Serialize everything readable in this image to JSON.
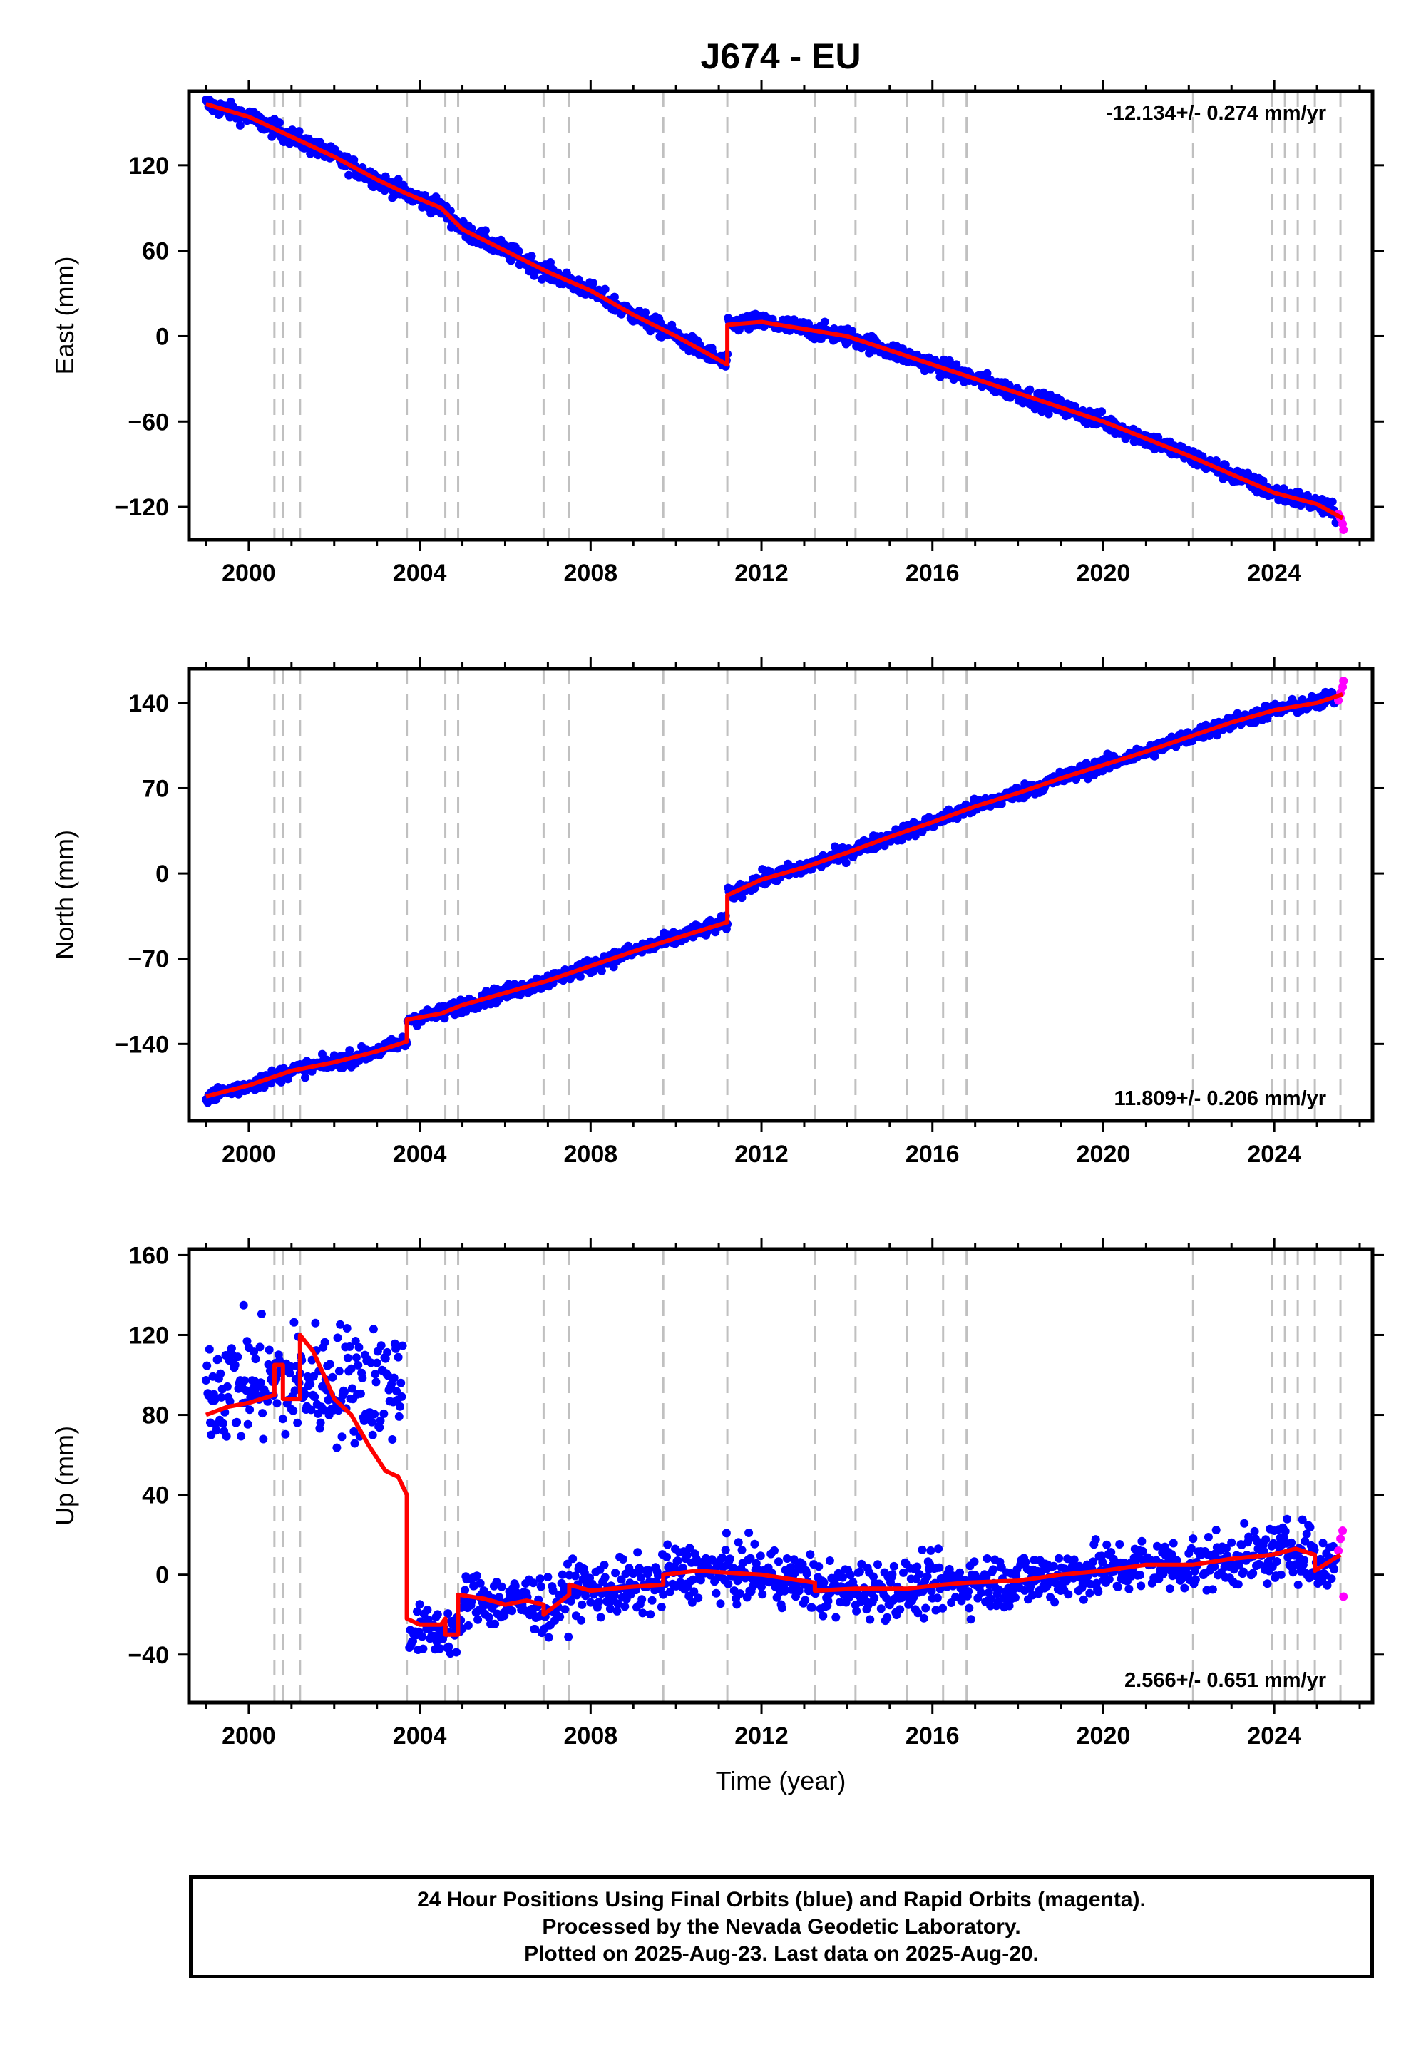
{
  "title": "J674 - EU",
  "footer": {
    "line1": "24 Hour Positions Using Final Orbits (blue) and Rapid Orbits (magenta).",
    "line2": "Processed by the Nevada Geodetic Laboratory.",
    "line3": "Plotted on 2025-Aug-23. Last data on 2025-Aug-20."
  },
  "colors": {
    "final_orbits": "#0000ff",
    "rapid_orbits": "#ff00ff",
    "model": "#ff0000",
    "event_lines": "#c0c0c0"
  },
  "chart_data": [
    {
      "type": "scatter",
      "component": "East",
      "ylabel": "East (mm)",
      "xlabel": "",
      "xlim": [
        1998.6,
        2026.3
      ],
      "ylim": [
        -143,
        172
      ],
      "xticks": [
        2000,
        2004,
        2008,
        2012,
        2016,
        2020,
        2024
      ],
      "yticks": [
        -120,
        -60,
        0,
        60,
        120
      ],
      "rate_label": "-12.134+/- 0.274 mm/yr",
      "rate_position": "top-right",
      "event_lines": [
        2000.6,
        2000.8,
        2001.2,
        2003.7,
        2004.6,
        2004.9,
        2006.9,
        2007.5,
        2009.7,
        2011.2,
        2013.25,
        2014.2,
        2015.4,
        2016.25,
        2016.8,
        2022.1,
        2023.95,
        2024.25,
        2024.55,
        2024.95,
        2025.55
      ],
      "model": [
        [
          1999.0,
          163
        ],
        [
          2000.0,
          154
        ],
        [
          2001.0,
          140
        ],
        [
          2002.0,
          126
        ],
        [
          2003.0,
          110
        ],
        [
          2003.7,
          100
        ],
        [
          2004.5,
          90
        ],
        [
          2005.0,
          75
        ],
        [
          2006.0,
          60
        ],
        [
          2007.0,
          45
        ],
        [
          2008.0,
          32
        ],
        [
          2009.0,
          15
        ],
        [
          2010.0,
          0
        ],
        [
          2011.2,
          -20
        ],
        [
          2011.2,
          8
        ],
        [
          2012.0,
          10
        ],
        [
          2013.0,
          5
        ],
        [
          2014.0,
          0
        ],
        [
          2015.0,
          -10
        ],
        [
          2016.0,
          -20
        ],
        [
          2017.0,
          -30
        ],
        [
          2018.0,
          -40
        ],
        [
          2019.0,
          -50
        ],
        [
          2020.0,
          -60
        ],
        [
          2021.0,
          -72
        ],
        [
          2022.0,
          -84
        ],
        [
          2023.0,
          -97
        ],
        [
          2024.0,
          -110
        ],
        [
          2025.0,
          -118
        ],
        [
          2025.6,
          -128
        ]
      ],
      "rapid_points": [
        [
          2025.5,
          -125
        ],
        [
          2025.55,
          -128
        ],
        [
          2025.6,
          -132
        ],
        [
          2025.62,
          -136
        ]
      ]
    },
    {
      "type": "scatter",
      "component": "North",
      "ylabel": "North (mm)",
      "xlabel": "",
      "xlim": [
        1998.6,
        2026.3
      ],
      "ylim": [
        -203,
        168
      ],
      "xticks": [
        2000,
        2004,
        2008,
        2012,
        2016,
        2020,
        2024
      ],
      "yticks": [
        -140,
        -70,
        0,
        70,
        140
      ],
      "rate_label": "11.809+/- 0.206 mm/yr",
      "rate_position": "bottom-right",
      "event_lines": [
        2000.6,
        2000.8,
        2001.2,
        2003.7,
        2004.6,
        2004.9,
        2006.9,
        2007.5,
        2009.7,
        2011.2,
        2013.25,
        2014.2,
        2015.4,
        2016.25,
        2016.8,
        2022.1,
        2023.95,
        2024.25,
        2024.55,
        2024.95,
        2025.55
      ],
      "model": [
        [
          1999.0,
          -183
        ],
        [
          2000.0,
          -174
        ],
        [
          2001.0,
          -162
        ],
        [
          2002.0,
          -155
        ],
        [
          2003.0,
          -146
        ],
        [
          2003.7,
          -138
        ],
        [
          2003.7,
          -120
        ],
        [
          2004.5,
          -115
        ],
        [
          2005.0,
          -108
        ],
        [
          2006.0,
          -98
        ],
        [
          2007.0,
          -88
        ],
        [
          2008.0,
          -76
        ],
        [
          2009.0,
          -64
        ],
        [
          2010.0,
          -53
        ],
        [
          2011.2,
          -40
        ],
        [
          2011.2,
          -18
        ],
        [
          2012.0,
          -5
        ],
        [
          2013.0,
          5
        ],
        [
          2014.0,
          17
        ],
        [
          2015.0,
          30
        ],
        [
          2016.0,
          42
        ],
        [
          2017.0,
          55
        ],
        [
          2018.0,
          66
        ],
        [
          2019.0,
          78
        ],
        [
          2020.0,
          89
        ],
        [
          2021.0,
          100
        ],
        [
          2022.0,
          112
        ],
        [
          2023.0,
          124
        ],
        [
          2024.0,
          134
        ],
        [
          2025.0,
          140
        ],
        [
          2025.6,
          147
        ]
      ],
      "rapid_points": [
        [
          2025.5,
          142
        ],
        [
          2025.55,
          148
        ],
        [
          2025.6,
          153
        ],
        [
          2025.62,
          158
        ]
      ]
    },
    {
      "type": "scatter",
      "component": "Up",
      "ylabel": "Up (mm)",
      "xlabel": "Time (year)",
      "xlim": [
        1998.6,
        2026.3
      ],
      "ylim": [
        -64,
        163
      ],
      "xticks": [
        2000,
        2004,
        2008,
        2012,
        2016,
        2020,
        2024
      ],
      "yticks": [
        -40,
        0,
        40,
        80,
        120,
        160
      ],
      "rate_label": "2.566+/- 0.651 mm/yr",
      "rate_position": "bottom-right",
      "event_lines": [
        2000.6,
        2000.8,
        2001.2,
        2003.7,
        2004.6,
        2004.9,
        2006.9,
        2007.5,
        2009.7,
        2011.2,
        2013.25,
        2014.2,
        2015.4,
        2016.25,
        2016.8,
        2022.1,
        2023.95,
        2024.25,
        2024.55,
        2024.95,
        2025.55
      ],
      "model": [
        [
          1999.0,
          80
        ],
        [
          1999.5,
          84
        ],
        [
          2000.0,
          86
        ],
        [
          2000.6,
          90
        ],
        [
          2000.6,
          105
        ],
        [
          2000.8,
          105
        ],
        [
          2000.8,
          88
        ],
        [
          2001.2,
          88
        ],
        [
          2001.2,
          120
        ],
        [
          2001.5,
          112
        ],
        [
          2001.8,
          98
        ],
        [
          2002.0,
          88
        ],
        [
          2002.4,
          80
        ],
        [
          2002.8,
          65
        ],
        [
          2003.2,
          52
        ],
        [
          2003.5,
          49
        ],
        [
          2003.7,
          40
        ],
        [
          2003.7,
          -22
        ],
        [
          2004.0,
          -25
        ],
        [
          2004.5,
          -25
        ],
        [
          2004.6,
          -22
        ],
        [
          2004.6,
          -30
        ],
        [
          2004.9,
          -30
        ],
        [
          2004.9,
          -10
        ],
        [
          2005.5,
          -12
        ],
        [
          2006.0,
          -15
        ],
        [
          2006.5,
          -13
        ],
        [
          2006.9,
          -15
        ],
        [
          2006.9,
          -20
        ],
        [
          2007.5,
          -10
        ],
        [
          2007.5,
          -5
        ],
        [
          2008.0,
          -8
        ],
        [
          2009.0,
          -6
        ],
        [
          2009.7,
          -5
        ],
        [
          2009.7,
          0
        ],
        [
          2010.5,
          2
        ],
        [
          2011.2,
          1
        ],
        [
          2012.0,
          0
        ],
        [
          2013.25,
          -4
        ],
        [
          2013.25,
          -8
        ],
        [
          2014.2,
          -7
        ],
        [
          2015.4,
          -7
        ],
        [
          2016.25,
          -5
        ],
        [
          2016.8,
          -4
        ],
        [
          2018.0,
          -3
        ],
        [
          2019.0,
          0
        ],
        [
          2020.0,
          2
        ],
        [
          2021.0,
          5
        ],
        [
          2022.1,
          5
        ],
        [
          2023.0,
          8
        ],
        [
          2023.95,
          10
        ],
        [
          2024.5,
          13
        ],
        [
          2024.95,
          10
        ],
        [
          2024.95,
          2
        ],
        [
          2025.55,
          10
        ]
      ],
      "rapid_points": [
        [
          2025.5,
          12
        ],
        [
          2025.55,
          18
        ],
        [
          2025.6,
          22
        ],
        [
          2025.62,
          -11
        ]
      ]
    }
  ]
}
